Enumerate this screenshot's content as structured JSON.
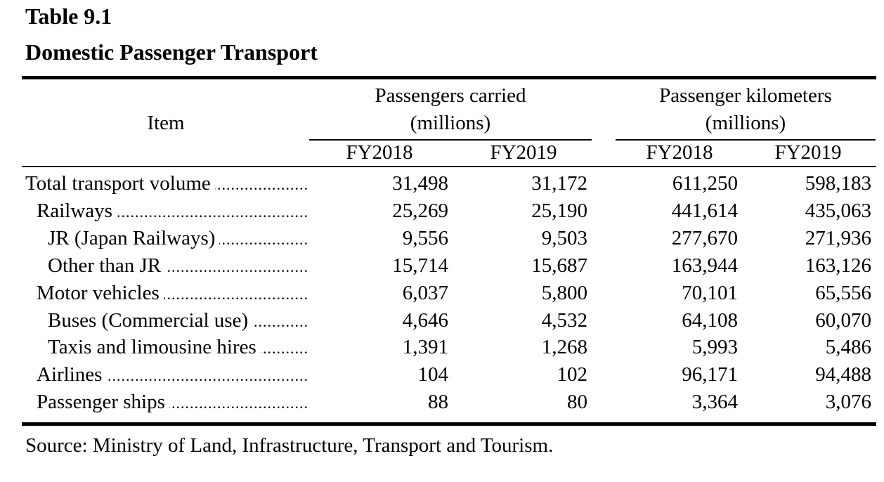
{
  "title": {
    "number": "Table 9.1",
    "name": "Domestic Passenger Transport"
  },
  "header": {
    "item": "Item",
    "group1_line1": "Passengers carried",
    "group1_line2": "(millions)",
    "group2_line1": "Passenger kilometers",
    "group2_line2": "(millions)",
    "years": [
      "FY2018",
      "FY2019",
      "FY2018",
      "FY2019"
    ]
  },
  "rows": [
    {
      "label": "Total transport volume",
      "indent": 0,
      "values": [
        "31,498",
        "31,172",
        "611,250",
        "598,183"
      ]
    },
    {
      "label": "Railways",
      "indent": 1,
      "values": [
        "25,269",
        "25,190",
        "441,614",
        "435,063"
      ]
    },
    {
      "label": "JR (Japan Railways)",
      "indent": 2,
      "values": [
        "9,556",
        "9,503",
        "277,670",
        "271,936"
      ]
    },
    {
      "label": "Other than JR",
      "indent": 2,
      "values": [
        "15,714",
        "15,687",
        "163,944",
        "163,126"
      ]
    },
    {
      "label": "Motor vehicles",
      "indent": 1,
      "values": [
        "6,037",
        "5,800",
        "70,101",
        "65,556"
      ]
    },
    {
      "label": "Buses (Commercial use)",
      "indent": 2,
      "values": [
        "4,646",
        "4,532",
        "64,108",
        "60,070"
      ]
    },
    {
      "label": "Taxis and limousine hires",
      "indent": 2,
      "values": [
        "1,391",
        "1,268",
        "5,993",
        "5,486"
      ]
    },
    {
      "label": "Airlines",
      "indent": 1,
      "values": [
        "104",
        "102",
        "96,171",
        "94,488"
      ]
    },
    {
      "label": "Passenger ships",
      "indent": 1,
      "values": [
        "88",
        "80",
        "3,364",
        "3,076"
      ]
    }
  ],
  "source": "Source:  Ministry of Land, Infrastructure, Transport and Tourism."
}
